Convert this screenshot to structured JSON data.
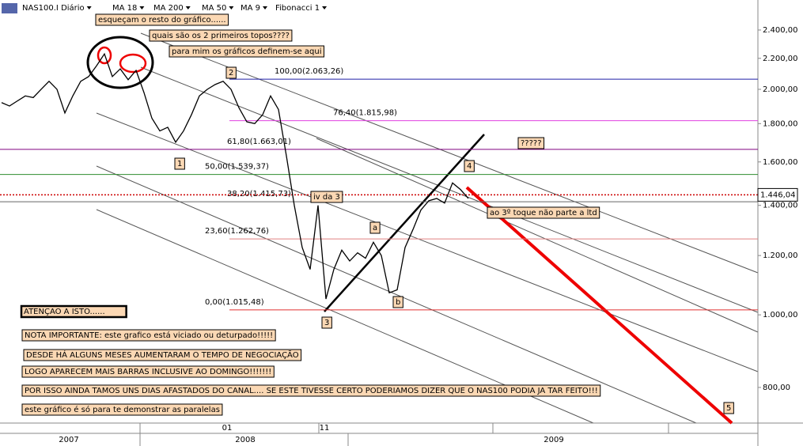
{
  "chart_data": {
    "type": "line",
    "log_scale": true,
    "grid": false,
    "toolbar": [
      "NAS100.I Diário",
      "MA 18",
      "MA 200",
      "MA 50",
      "MA 9",
      "Fibonacci 1"
    ],
    "categories": [
      null,
      null,
      null,
      null,
      null,
      null,
      null,
      null,
      null,
      null,
      null,
      null,
      null,
      null,
      null,
      null,
      null,
      null,
      null,
      null,
      null,
      null,
      null,
      null,
      null,
      null,
      null,
      null,
      null,
      null,
      null,
      null,
      null,
      null,
      null,
      null,
      null,
      null,
      null,
      null,
      null,
      null,
      null,
      null,
      null,
      null,
      null,
      null,
      null,
      null,
      null,
      null,
      null,
      null,
      null,
      null,
      null,
      null,
      null,
      null
    ],
    "series": [
      {
        "name": "NAS100.I",
        "color": "#000000",
        "values": [
          1920,
          1900,
          1930,
          1960,
          1950,
          2000,
          2050,
          2000,
          1860,
          1960,
          2050,
          2080,
          2150,
          2230,
          2080,
          2130,
          2060,
          2120,
          1980,
          1830,
          1760,
          1780,
          1700,
          1760,
          1850,
          1960,
          2000,
          2030,
          2050,
          2000,
          1890,
          1810,
          1800,
          1850,
          1960,
          1880,
          1630,
          1400,
          1230,
          1150,
          1400,
          1050,
          1150,
          1220,
          1180,
          1210,
          1190,
          1250,
          1200,
          1070,
          1080,
          1230,
          1300,
          1380,
          1420,
          1430,
          1410,
          1500,
          1470,
          1430
        ]
      }
    ],
    "ylim": [
      717,
      2632
    ],
    "yticks": [
      {
        "value": 800,
        "label": "800,00"
      },
      {
        "value": 1000,
        "label": "1.000,00"
      },
      {
        "value": 1200,
        "label": "1.200,00"
      },
      {
        "value": 1400,
        "label": "1.400,00"
      },
      {
        "value": 1600,
        "label": "1.600,00"
      },
      {
        "value": 1800,
        "label": "1.800,00"
      },
      {
        "value": 2000,
        "label": "2.000,00"
      },
      {
        "value": 2200,
        "label": "2.200,00"
      },
      {
        "value": 2400,
        "label": "2.400,00"
      }
    ],
    "last_price": {
      "value": 1446.04,
      "label": "1.446,04",
      "color": "#cc0000"
    },
    "fib_levels": [
      {
        "value": 2063.26,
        "label": "100,00(2.063,26)",
        "color": "#1f1fa8"
      },
      {
        "value": 1815.98,
        "label": "76,40(1.815,98)",
        "color": "#e040e0"
      },
      {
        "value": 1663.01,
        "label": "61,80(1.663,01)",
        "color": "#800080"
      },
      {
        "value": 1539.37,
        "label": "50,00(1.539,37)",
        "color": "#2e8b2e"
      },
      {
        "value": 1415.73,
        "label": "38,20(1.415,73)",
        "color": "#666666"
      },
      {
        "value": 1262.76,
        "label": "23,60(1.262,76)",
        "color": "#e08080"
      },
      {
        "value": 1015.48,
        "label": "0,00(1.015,48)",
        "color": "#e03030"
      }
    ],
    "period_labels": [
      "2007",
      "01",
      "2008",
      "11",
      "2009"
    ],
    "annotations": [
      "esqueçam o resto do gráfico......",
      "quais são os 2 primeiros topos????",
      "para mim os gráficos definem-se aqui",
      "?????",
      "ao 3º toque não parte a ltd",
      "ATENÇAO A ISTO......",
      "NOTA IMPORTANTE: este grafico está viciado ou deturpado!!!!!",
      "DESDE HÁ ALGUNS MESES AUMENTARAM O TEMPO DE NEGOCIAÇÃO",
      "LOGO APARECEM MAIS BARRAS INCLUSIVE AO DOMINGO!!!!!!!",
      "POR ISSO AINDA TAMOS UNS DIAS AFASTADOS DO CANAL.... SE ESTE TIVESSE CERTO PODERIAMOS DIZER QUE O NAS100 PODIA JA TAR FEITO!!!",
      "este gráfico é só para te demonstrar as paralelas",
      "2",
      "1",
      "4",
      "iv da 3",
      "a",
      "3",
      "b",
      "5"
    ]
  }
}
